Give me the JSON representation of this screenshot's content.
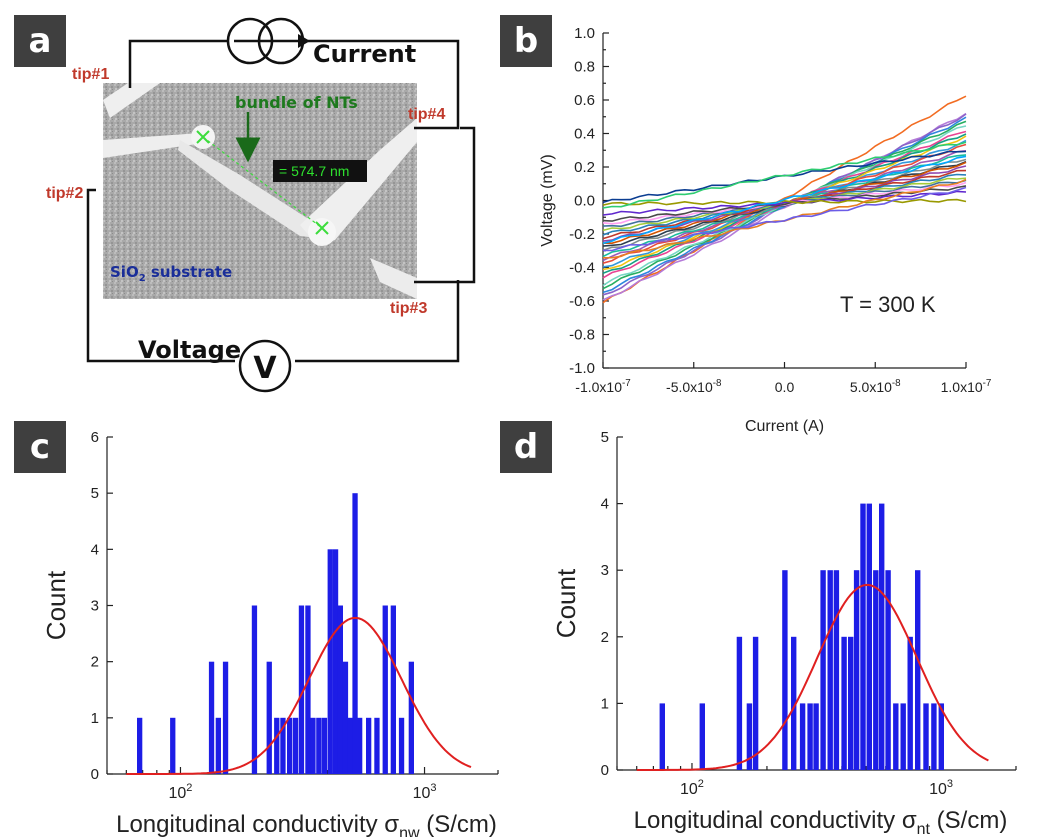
{
  "panel_labels": {
    "a": "a",
    "b": "b",
    "c": "c",
    "d": "d"
  },
  "schematic": {
    "current_label": "Current",
    "voltage_label": "Voltage",
    "voltmeter_symbol": "V",
    "tips": [
      "tip#1",
      "tip#2",
      "tip#3",
      "tip#4"
    ],
    "bundle_label": "bundle of NTs",
    "measurement": "= 574.7 nm",
    "substrate_prefix": "SiO",
    "substrate_sub": "2",
    "substrate_suffix": " substrate"
  },
  "chart_data": [
    {
      "type": "line",
      "panel": "b",
      "xlabel": "Current (A)",
      "ylabel": "Voltage (mV)",
      "xlim": [
        -1e-07,
        1e-07
      ],
      "ylim": [
        -1.0,
        1.0
      ],
      "x_ticks": [
        "-1.0x10-7",
        "-5.0x10-8",
        "0.0",
        "5.0x10-8",
        "1.0x10-7"
      ],
      "y_ticks": [
        "1.0",
        "0.8",
        "0.6",
        "0.4",
        "0.2",
        "0.0",
        "-0.2",
        "-0.4",
        "-0.6",
        "-0.8",
        "-1.0"
      ],
      "annotation": "T = 300 K",
      "series_endpoints": [
        {
          "y_start": -0.61,
          "y_end": 0.63,
          "color": "#f26c22"
        },
        {
          "y_start": -0.6,
          "y_end": 0.52,
          "color": "#b57bd9"
        },
        {
          "y_start": -0.57,
          "y_end": 0.51,
          "color": "#8a63c9"
        },
        {
          "y_start": -0.55,
          "y_end": 0.49,
          "color": "#2e86de"
        },
        {
          "y_start": -0.52,
          "y_end": 0.47,
          "color": "#27ae60"
        },
        {
          "y_start": -0.5,
          "y_end": 0.45,
          "color": "#76d7c4"
        },
        {
          "y_start": -0.46,
          "y_end": 0.42,
          "color": "#e84393"
        },
        {
          "y_start": -0.44,
          "y_end": 0.4,
          "color": "#16a085"
        },
        {
          "y_start": -0.42,
          "y_end": 0.38,
          "color": "#f1c40f"
        },
        {
          "y_start": -0.4,
          "y_end": 0.35,
          "color": "#3498db"
        },
        {
          "y_start": -0.37,
          "y_end": 0.33,
          "color": "#e74c3c"
        },
        {
          "y_start": -0.35,
          "y_end": 0.3,
          "color": "#9b59b6"
        },
        {
          "y_start": -0.33,
          "y_end": 0.28,
          "color": "#1abc9c"
        },
        {
          "y_start": -0.3,
          "y_end": 0.25,
          "color": "#7f8c8d"
        },
        {
          "y_start": -0.28,
          "y_end": 0.23,
          "color": "#2c3e50"
        },
        {
          "y_start": -0.26,
          "y_end": 0.22,
          "color": "#d35400"
        },
        {
          "y_start": -0.24,
          "y_end": 0.2,
          "color": "#8e44ad"
        },
        {
          "y_start": -0.22,
          "y_end": 0.18,
          "color": "#c0392b"
        },
        {
          "y_start": -0.2,
          "y_end": 0.16,
          "color": "#2980b9"
        },
        {
          "y_start": -0.18,
          "y_end": 0.14,
          "color": "#a3cb38"
        },
        {
          "y_start": -0.16,
          "y_end": 0.12,
          "color": "#40739e"
        },
        {
          "y_start": -0.14,
          "y_end": 0.1,
          "color": "#ff9ff3"
        },
        {
          "y_start": -0.12,
          "y_end": 0.08,
          "color": "#4a4a4a"
        },
        {
          "y_start": -0.08,
          "y_end": 0.05,
          "color": "#5f27cd"
        },
        {
          "y_start": -0.02,
          "y_end": 0.0,
          "color": "#999900"
        },
        {
          "y_start": -0.01,
          "y_end": 0.3,
          "color": "#0b3d91"
        },
        {
          "y_start": -0.05,
          "y_end": 0.35,
          "color": "#2ecc71"
        },
        {
          "y_start": -0.35,
          "y_end": 0.12,
          "color": "#e67e22"
        },
        {
          "y_start": -0.3,
          "y_end": 0.07,
          "color": "#6c5ce7"
        },
        {
          "y_start": -0.25,
          "y_end": 0.26,
          "color": "#00a8ff"
        }
      ]
    },
    {
      "type": "bar",
      "panel": "c",
      "xlabel": "Longitudinal conductivity",
      "xlabel_symbol": "σ",
      "xlabel_sub": "nw",
      "xlabel_unit": " (S/cm)",
      "ylabel": "Count",
      "x_scale": "log",
      "xlim": [
        50,
        2000
      ],
      "ylim": [
        0,
        6
      ],
      "y_ticks": [
        "0",
        "1",
        "2",
        "3",
        "4",
        "5",
        "6"
      ],
      "x_tick_base": "10",
      "x_tick_exps": [
        "2",
        "3"
      ],
      "x_tick_values": [
        100,
        1000
      ],
      "bars": [
        {
          "x": 68,
          "count": 1
        },
        {
          "x": 93,
          "count": 1
        },
        {
          "x": 134,
          "count": 2
        },
        {
          "x": 143,
          "count": 1
        },
        {
          "x": 153,
          "count": 2
        },
        {
          "x": 201,
          "count": 3
        },
        {
          "x": 231,
          "count": 2
        },
        {
          "x": 248,
          "count": 1
        },
        {
          "x": 263,
          "count": 1
        },
        {
          "x": 280,
          "count": 1
        },
        {
          "x": 296,
          "count": 1
        },
        {
          "x": 313,
          "count": 3
        },
        {
          "x": 333,
          "count": 3
        },
        {
          "x": 349,
          "count": 1
        },
        {
          "x": 369,
          "count": 1
        },
        {
          "x": 389,
          "count": 1
        },
        {
          "x": 411,
          "count": 4
        },
        {
          "x": 432,
          "count": 4
        },
        {
          "x": 452,
          "count": 3
        },
        {
          "x": 474,
          "count": 2
        },
        {
          "x": 497,
          "count": 1
        },
        {
          "x": 519,
          "count": 5
        },
        {
          "x": 542,
          "count": 1
        },
        {
          "x": 590,
          "count": 1
        },
        {
          "x": 638,
          "count": 1
        },
        {
          "x": 690,
          "count": 3
        },
        {
          "x": 745,
          "count": 3
        },
        {
          "x": 805,
          "count": 1
        },
        {
          "x": 883,
          "count": 2
        }
      ],
      "fit_curve": {
        "color": "#e02020",
        "center": 520,
        "peak": 2.78,
        "log_sigma": 0.19,
        "x_from": 60,
        "x_to": 1550
      }
    },
    {
      "type": "bar",
      "panel": "d",
      "xlabel": "Longitudinal conductivity",
      "xlabel_symbol": "σ",
      "xlabel_sub": "nt",
      "xlabel_unit": " (S/cm)",
      "ylabel": "Count",
      "x_scale": "log",
      "xlim": [
        50,
        2000
      ],
      "ylim": [
        0,
        5
      ],
      "y_ticks": [
        "0",
        "1",
        "2",
        "3",
        "4",
        "5"
      ],
      "x_tick_base": "10",
      "x_tick_exps": [
        "2",
        "3"
      ],
      "x_tick_values": [
        100,
        1000
      ],
      "bars": [
        {
          "x": 76,
          "count": 1
        },
        {
          "x": 110,
          "count": 1
        },
        {
          "x": 155,
          "count": 2
        },
        {
          "x": 170,
          "count": 1
        },
        {
          "x": 180,
          "count": 2
        },
        {
          "x": 236,
          "count": 3
        },
        {
          "x": 256,
          "count": 2
        },
        {
          "x": 278,
          "count": 1
        },
        {
          "x": 298,
          "count": 1
        },
        {
          "x": 315,
          "count": 1
        },
        {
          "x": 336,
          "count": 3
        },
        {
          "x": 359,
          "count": 3
        },
        {
          "x": 380,
          "count": 3
        },
        {
          "x": 408,
          "count": 2
        },
        {
          "x": 434,
          "count": 2
        },
        {
          "x": 458,
          "count": 3
        },
        {
          "x": 486,
          "count": 4
        },
        {
          "x": 515,
          "count": 4
        },
        {
          "x": 547,
          "count": 3
        },
        {
          "x": 578,
          "count": 4
        },
        {
          "x": 613,
          "count": 3
        },
        {
          "x": 658,
          "count": 1
        },
        {
          "x": 705,
          "count": 1
        },
        {
          "x": 752,
          "count": 2
        },
        {
          "x": 806,
          "count": 3
        },
        {
          "x": 870,
          "count": 1
        },
        {
          "x": 936,
          "count": 1
        },
        {
          "x": 1002,
          "count": 1
        }
      ],
      "fit_curve": {
        "color": "#e02020",
        "center": 505,
        "peak": 2.78,
        "log_sigma": 0.2,
        "x_from": 60,
        "x_to": 1550
      }
    }
  ]
}
